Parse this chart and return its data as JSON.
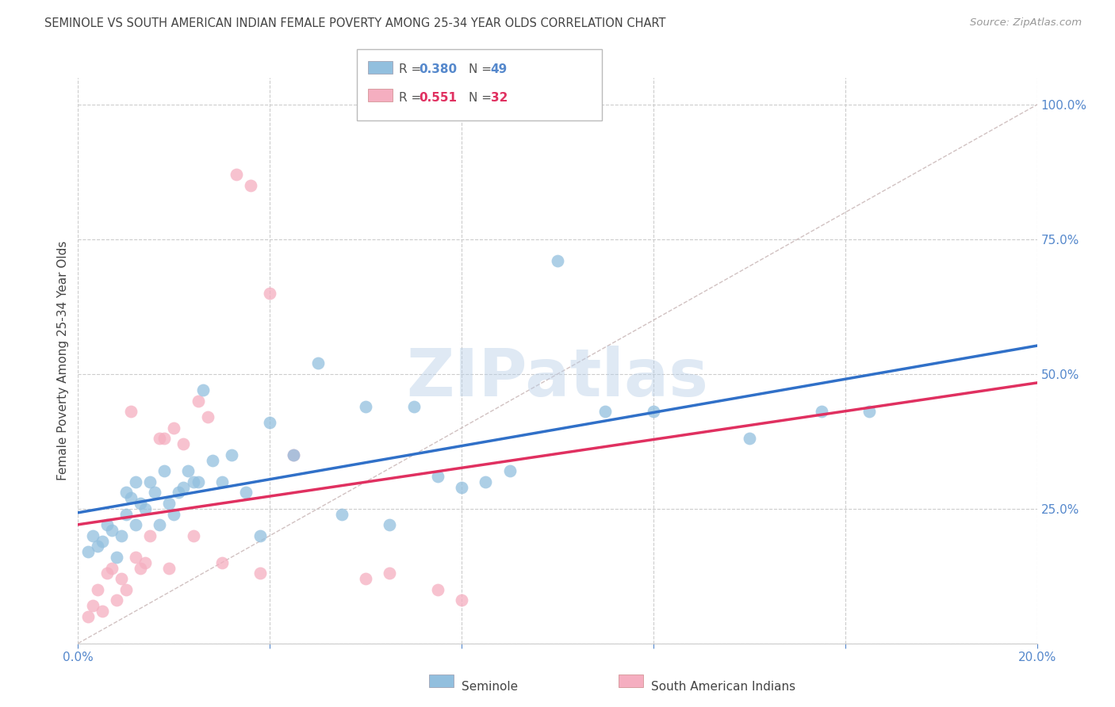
{
  "title": "SEMINOLE VS SOUTH AMERICAN INDIAN FEMALE POVERTY AMONG 25-34 YEAR OLDS CORRELATION CHART",
  "source": "Source: ZipAtlas.com",
  "ylabel": "Female Poverty Among 25-34 Year Olds",
  "xlim": [
    0.0,
    0.2
  ],
  "ylim": [
    0.0,
    1.05
  ],
  "xticks": [
    0.0,
    0.04,
    0.08,
    0.12,
    0.16,
    0.2
  ],
  "xticklabels": [
    "0.0%",
    "",
    "",
    "",
    "",
    "20.0%"
  ],
  "yticks_right": [
    0.0,
    0.25,
    0.5,
    0.75,
    1.0
  ],
  "ytick_right_labels": [
    "",
    "25.0%",
    "50.0%",
    "75.0%",
    "100.0%"
  ],
  "seminole_R": 0.38,
  "seminole_N": 49,
  "sai_R": 0.551,
  "sai_N": 32,
  "seminole_color": "#92bfde",
  "sai_color": "#f5aec0",
  "seminole_line_color": "#3070c8",
  "sai_line_color": "#e03060",
  "diagonal_color": "#ccbbbb",
  "background_color": "#ffffff",
  "grid_color": "#cccccc",
  "title_color": "#444444",
  "source_color": "#999999",
  "right_label_color": "#5588cc",
  "seminole_x": [
    0.002,
    0.003,
    0.004,
    0.005,
    0.006,
    0.007,
    0.008,
    0.009,
    0.01,
    0.01,
    0.011,
    0.012,
    0.012,
    0.013,
    0.014,
    0.015,
    0.016,
    0.017,
    0.018,
    0.019,
    0.02,
    0.021,
    0.022,
    0.023,
    0.024,
    0.025,
    0.026,
    0.028,
    0.03,
    0.032,
    0.035,
    0.038,
    0.04,
    0.045,
    0.05,
    0.055,
    0.06,
    0.065,
    0.07,
    0.075,
    0.08,
    0.085,
    0.09,
    0.1,
    0.11,
    0.12,
    0.14,
    0.155,
    0.165
  ],
  "seminole_y": [
    0.17,
    0.2,
    0.18,
    0.19,
    0.22,
    0.21,
    0.16,
    0.2,
    0.28,
    0.24,
    0.27,
    0.22,
    0.3,
    0.26,
    0.25,
    0.3,
    0.28,
    0.22,
    0.32,
    0.26,
    0.24,
    0.28,
    0.29,
    0.32,
    0.3,
    0.3,
    0.47,
    0.34,
    0.3,
    0.35,
    0.28,
    0.2,
    0.41,
    0.35,
    0.52,
    0.24,
    0.44,
    0.22,
    0.44,
    0.31,
    0.29,
    0.3,
    0.32,
    0.71,
    0.43,
    0.43,
    0.38,
    0.43,
    0.43
  ],
  "sai_x": [
    0.002,
    0.003,
    0.004,
    0.005,
    0.006,
    0.007,
    0.008,
    0.009,
    0.01,
    0.011,
    0.012,
    0.013,
    0.014,
    0.015,
    0.017,
    0.018,
    0.019,
    0.02,
    0.022,
    0.024,
    0.025,
    0.027,
    0.03,
    0.033,
    0.036,
    0.038,
    0.04,
    0.045,
    0.06,
    0.065,
    0.075,
    0.08
  ],
  "sai_y": [
    0.05,
    0.07,
    0.1,
    0.06,
    0.13,
    0.14,
    0.08,
    0.12,
    0.1,
    0.43,
    0.16,
    0.14,
    0.15,
    0.2,
    0.38,
    0.38,
    0.14,
    0.4,
    0.37,
    0.2,
    0.45,
    0.42,
    0.15,
    0.87,
    0.85,
    0.13,
    0.65,
    0.35,
    0.12,
    0.13,
    0.1,
    0.08
  ],
  "watermark_text": "ZIPatlas",
  "legend_label_blue": "Seminole",
  "legend_label_pink": "South American Indians"
}
